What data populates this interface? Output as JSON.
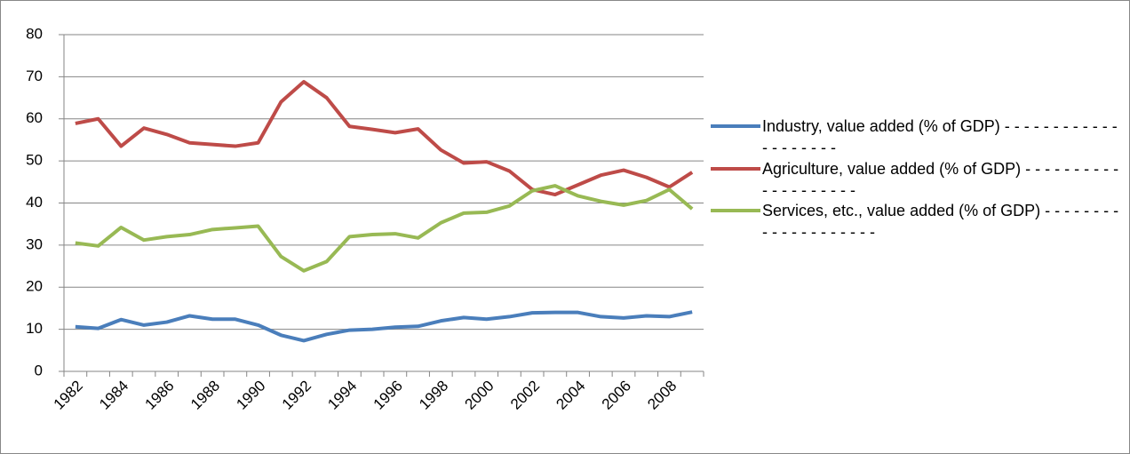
{
  "chart_data": {
    "type": "line",
    "categories": [
      "1982",
      null,
      "1984",
      null,
      "1986",
      null,
      "1988",
      null,
      "1990",
      null,
      "1992",
      null,
      "1994",
      null,
      "1996",
      null,
      "1998",
      null,
      "2000",
      null,
      "2002",
      null,
      "2004",
      null,
      "2006",
      null,
      "2008",
      null
    ],
    "series": [
      {
        "name": "Industry, value added (% of GDP) - - - - - - - - - - - - - - - - - - - -",
        "color": "#4a7ebb",
        "values": [
          10.6,
          10.2,
          12.3,
          11,
          11.7,
          13.2,
          12.4,
          12.4,
          11,
          8.6,
          7.3,
          8.8,
          9.8,
          10,
          10.5,
          10.7,
          12,
          12.8,
          12.4,
          13,
          13.9,
          14,
          14,
          13,
          12.7,
          13.2,
          13,
          14.1
        ]
      },
      {
        "name": "Agriculture, value added (% of GDP) - - - - - - - - - - - - - - - - - - - -",
        "color": "#be4b48",
        "values": [
          58.9,
          60,
          53.5,
          57.8,
          56.3,
          54.3,
          53.9,
          53.5,
          54.3,
          64,
          68.8,
          65,
          58.2,
          57.5,
          56.7,
          57.6,
          52.6,
          49.5,
          49.8,
          47.6,
          43.2,
          42,
          44.3,
          46.6,
          47.8,
          46.1,
          43.8,
          47.3
        ]
      },
      {
        "name": "Services, etc., value added (% of GDP) - - - - - - - - - - - - - - - - - - - -",
        "color": "#98b954",
        "values": [
          30.5,
          29.8,
          34.2,
          31.2,
          32,
          32.5,
          33.7,
          34.1,
          34.5,
          27.3,
          23.9,
          26.1,
          32,
          32.5,
          32.7,
          31.7,
          35.3,
          37.6,
          37.8,
          39.3,
          42.9,
          44.1,
          41.7,
          40.4,
          39.5,
          40.6,
          43.2,
          38.6
        ]
      }
    ],
    "ylim": [
      0,
      80
    ],
    "yticks": [
      0,
      10,
      20,
      30,
      40,
      50,
      60,
      70,
      80
    ],
    "grid": true,
    "legend": "right"
  }
}
